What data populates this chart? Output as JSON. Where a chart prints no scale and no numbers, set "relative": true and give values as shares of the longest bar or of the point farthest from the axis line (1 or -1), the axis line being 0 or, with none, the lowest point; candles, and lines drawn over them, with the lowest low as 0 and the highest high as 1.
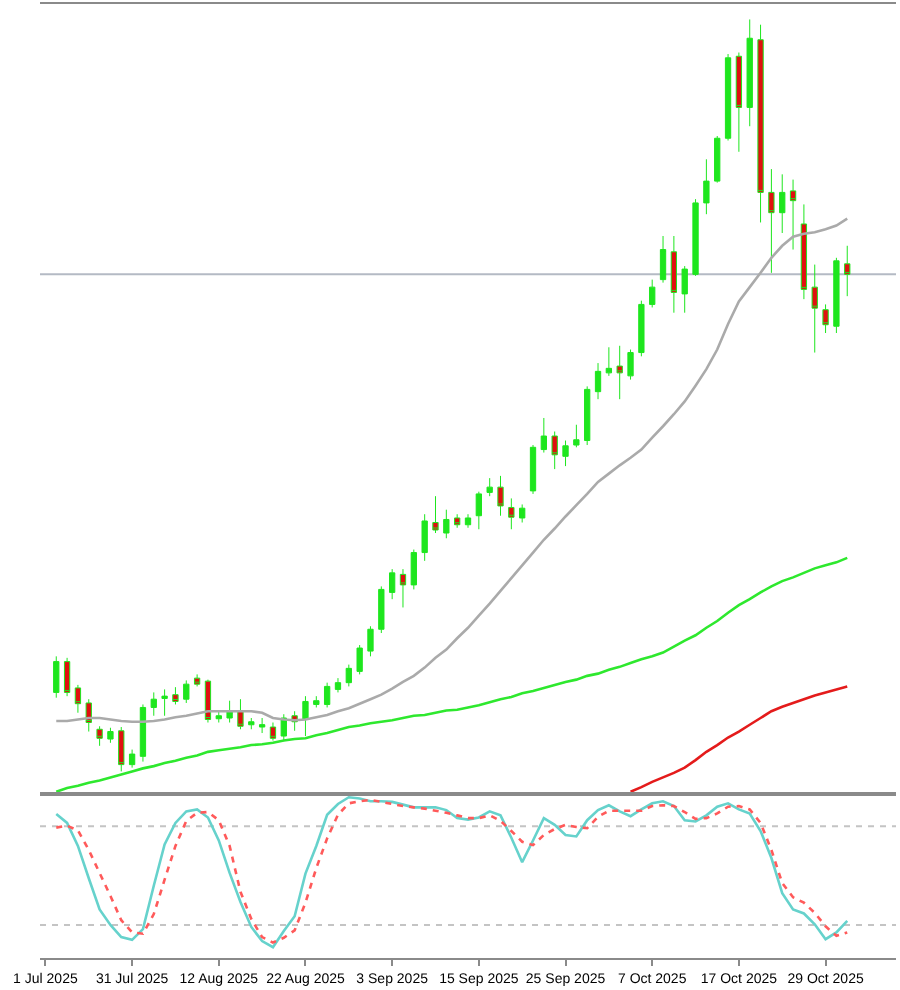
{
  "chart_data": [
    {
      "type": "candlestick",
      "relative": true,
      "categories": [
        null,
        null,
        null,
        null,
        null,
        null,
        null,
        null,
        null,
        null,
        null,
        null,
        null,
        null,
        null,
        null,
        null,
        null,
        null,
        null,
        null,
        null,
        null,
        null,
        null,
        null,
        null,
        null,
        null,
        null,
        null,
        null,
        null,
        null,
        null,
        null,
        null,
        null,
        null,
        null,
        null,
        null,
        null,
        null,
        null,
        null,
        null,
        null,
        null,
        null,
        null,
        null,
        null,
        null,
        null,
        null,
        null,
        null,
        null,
        null,
        null,
        null,
        null,
        null,
        null,
        null,
        null,
        null,
        null,
        null,
        null,
        null,
        null,
        null,
        null
      ],
      "color": "#1ee61e",
      "colors": [
        null,
        "#1ee61e",
        "#e01010",
        "#e01010",
        "#e01010",
        "#e01010",
        "#1ee61e",
        "#e01010",
        "#1ee61e",
        "#1ee61e",
        "#1ee61e",
        "#1ee61e",
        "#e01010",
        "#1ee61e",
        "#e01010",
        "#e01010",
        "#1ee61e",
        "#1ee61e",
        "#e01010",
        "#1ee61e",
        "#1ee61e",
        "#e01010",
        "#1ee61e",
        "#e01010",
        "#1ee61e",
        "#1ee61e",
        "#1ee61e",
        "#1ee61e",
        "#1ee61e",
        "#1ee61e",
        "#1ee61e",
        "#1ee61e",
        "#1ee61e",
        "#e01010",
        "#1ee61e",
        "#1ee61e",
        "#e01010",
        "#1ee61e",
        "#e01010",
        "#1ee61e",
        "#1ee61e",
        "#1ee61e",
        "#e01010",
        "#e01010",
        "#1ee61e",
        "#1ee61e",
        "#1ee61e",
        "#e01010",
        "#1ee61e",
        "#1ee61e",
        "#1ee61e",
        "#1ee61e",
        "#1ee61e",
        "#e01010",
        "#1ee61e",
        "#1ee61e",
        "#1ee61e",
        "#1ee61e",
        "#e01010",
        "#1ee61e",
        "#1ee61e",
        "#1ee61e",
        "#1ee61e",
        "#1ee61e",
        "#e01010",
        "#1ee61e",
        "#e01010",
        "#e01010",
        "#1ee61e",
        "#e01010",
        "#e01010",
        "#e01010",
        "#e01010",
        "#1ee61e",
        "#e01010"
      ],
      "ohlc": [
        null,
        [
          0.105,
          0.153,
          0.098,
          0.146
        ],
        [
          0.146,
          0.151,
          0.1,
          0.105
        ],
        [
          0.111,
          0.115,
          0.078,
          0.09
        ],
        [
          0.091,
          0.096,
          0.053,
          0.065
        ],
        [
          0.056,
          0.06,
          0.034,
          0.044
        ],
        [
          0.043,
          0.058,
          0.038,
          0.053
        ],
        [
          0.054,
          0.059,
          0.0,
          0.009
        ],
        [
          0.009,
          0.029,
          0.005,
          0.023
        ],
        [
          0.02,
          0.089,
          0.013,
          0.085
        ],
        [
          0.085,
          0.105,
          0.074,
          0.096
        ],
        [
          0.097,
          0.109,
          0.074,
          0.1
        ],
        [
          0.102,
          0.112,
          0.089,
          0.093
        ],
        [
          0.096,
          0.121,
          0.091,
          0.116
        ],
        [
          0.124,
          0.129,
          0.113,
          0.116
        ],
        [
          0.12,
          0.122,
          0.065,
          0.069
        ],
        [
          0.07,
          0.08,
          0.065,
          0.074
        ],
        [
          0.071,
          0.094,
          0.065,
          0.08
        ],
        [
          0.08,
          0.096,
          0.056,
          0.06
        ],
        [
          0.062,
          0.071,
          0.056,
          0.066
        ],
        [
          0.059,
          0.071,
          0.051,
          0.062
        ],
        [
          0.059,
          0.065,
          0.041,
          0.044
        ],
        [
          0.047,
          0.076,
          0.041,
          0.071
        ],
        [
          0.074,
          0.08,
          0.054,
          0.066
        ],
        [
          0.069,
          0.1,
          0.047,
          0.093
        ],
        [
          0.089,
          0.1,
          0.085,
          0.094
        ],
        [
          0.089,
          0.118,
          0.085,
          0.113
        ],
        [
          0.109,
          0.124,
          0.105,
          0.118
        ],
        [
          0.118,
          0.142,
          0.113,
          0.137
        ],
        [
          0.133,
          0.168,
          0.129,
          0.164
        ],
        [
          0.16,
          0.193,
          0.153,
          0.189
        ],
        [
          0.189,
          0.246,
          0.184,
          0.242
        ],
        [
          0.238,
          0.269,
          0.229,
          0.264
        ],
        [
          0.262,
          0.269,
          0.218,
          0.248
        ],
        [
          0.248,
          0.295,
          0.242,
          0.291
        ],
        [
          0.291,
          0.342,
          0.28,
          0.333
        ],
        [
          0.331,
          0.366,
          0.317,
          0.321
        ],
        [
          0.317,
          0.348,
          0.31,
          0.335
        ],
        [
          0.337,
          0.342,
          0.324,
          0.328
        ],
        [
          0.328,
          0.342,
          0.324,
          0.337
        ],
        [
          0.34,
          0.372,
          0.322,
          0.369
        ],
        [
          0.371,
          0.39,
          0.366,
          0.378
        ],
        [
          0.378,
          0.393,
          0.34,
          0.353
        ],
        [
          0.351,
          0.363,
          0.322,
          0.338
        ],
        [
          0.337,
          0.355,
          0.331,
          0.35
        ],
        [
          0.373,
          0.434,
          0.369,
          0.431
        ],
        [
          0.428,
          0.47,
          0.424,
          0.446
        ],
        [
          0.446,
          0.452,
          0.402,
          0.421
        ],
        [
          0.419,
          0.44,
          0.406,
          0.433
        ],
        [
          0.434,
          0.461,
          0.431,
          0.441
        ],
        [
          0.44,
          0.512,
          0.434,
          0.508
        ],
        [
          0.505,
          0.543,
          0.495,
          0.532
        ],
        [
          0.53,
          0.564,
          0.526,
          0.536
        ],
        [
          0.539,
          0.566,
          0.495,
          0.53
        ],
        [
          0.526,
          0.561,
          0.521,
          0.557
        ],
        [
          0.557,
          0.626,
          0.552,
          0.621
        ],
        [
          0.621,
          0.654,
          0.617,
          0.644
        ],
        [
          0.654,
          0.712,
          0.65,
          0.694
        ],
        [
          0.691,
          0.712,
          0.61,
          0.637
        ],
        [
          0.635,
          0.672,
          0.61,
          0.668
        ],
        [
          0.661,
          0.761,
          0.659,
          0.756
        ],
        [
          0.756,
          0.814,
          0.741,
          0.785
        ],
        [
          0.785,
          0.845,
          0.783,
          0.842
        ],
        [
          0.842,
          0.954,
          0.839,
          0.949
        ],
        [
          0.951,
          0.956,
          0.824,
          0.883
        ],
        [
          0.883,
          1.0,
          0.858,
          0.975
        ],
        [
          0.973,
          0.993,
          0.73,
          0.77
        ],
        [
          0.77,
          0.801,
          0.663,
          0.743
        ],
        [
          0.743,
          0.794,
          0.716,
          0.77
        ],
        [
          0.772,
          0.787,
          0.694,
          0.759
        ],
        [
          0.728,
          0.754,
          0.628,
          0.641
        ],
        [
          0.644,
          0.674,
          0.557,
          0.616
        ],
        [
          0.614,
          0.621,
          0.583,
          0.594
        ],
        [
          0.592,
          0.683,
          0.583,
          0.679
        ],
        [
          0.675,
          0.699,
          0.632,
          0.661
        ]
      ],
      "series": [
        {
          "type": "line",
          "color": "#aaaaaa",
          "values": [
            null,
            0.067,
            0.067,
            0.069,
            0.071,
            0.071,
            0.069,
            0.067,
            0.066,
            0.066,
            0.067,
            0.069,
            0.072,
            0.074,
            0.077,
            0.08,
            0.08,
            0.08,
            0.08,
            0.08,
            0.078,
            0.071,
            0.069,
            0.068,
            0.069,
            0.072,
            0.075,
            0.08,
            0.084,
            0.09,
            0.096,
            0.102,
            0.11,
            0.119,
            0.127,
            0.138,
            0.151,
            0.162,
            0.177,
            0.191,
            0.207,
            0.223,
            0.24,
            0.257,
            0.274,
            0.291,
            0.308,
            0.323,
            0.339,
            0.354,
            0.369,
            0.385,
            0.396,
            0.407,
            0.417,
            0.428,
            0.444,
            0.459,
            0.475,
            0.492,
            0.513,
            0.535,
            0.561,
            0.595,
            0.625,
            0.644,
            0.663,
            0.683,
            0.699,
            0.711,
            0.715,
            0.717,
            0.721,
            0.726,
            0.735
          ]
        },
        {
          "type": "line",
          "color": "#2ee82e",
          "values": [
            null,
            -0.027,
            -0.022,
            -0.019,
            -0.015,
            -0.012,
            -0.008,
            -0.004,
            0.0,
            0.004,
            0.007,
            0.011,
            0.014,
            0.018,
            0.021,
            0.026,
            0.028,
            0.03,
            0.032,
            0.035,
            0.036,
            0.038,
            0.041,
            0.043,
            0.044,
            0.048,
            0.051,
            0.055,
            0.059,
            0.061,
            0.064,
            0.066,
            0.068,
            0.071,
            0.074,
            0.075,
            0.078,
            0.081,
            0.082,
            0.085,
            0.088,
            0.092,
            0.096,
            0.099,
            0.104,
            0.107,
            0.111,
            0.115,
            0.119,
            0.122,
            0.127,
            0.13,
            0.135,
            0.139,
            0.144,
            0.149,
            0.153,
            0.158,
            0.166,
            0.174,
            0.181,
            0.191,
            0.2,
            0.211,
            0.221,
            0.229,
            0.238,
            0.246,
            0.253,
            0.258,
            0.264,
            0.27,
            0.274,
            0.278,
            0.284
          ]
        },
        {
          "type": "line",
          "color": "#e41b1b",
          "values": [
            null,
            null,
            null,
            null,
            null,
            null,
            null,
            null,
            null,
            null,
            null,
            null,
            null,
            null,
            null,
            null,
            null,
            null,
            null,
            null,
            null,
            null,
            null,
            null,
            null,
            null,
            null,
            null,
            null,
            null,
            null,
            null,
            null,
            null,
            null,
            null,
            null,
            null,
            null,
            null,
            null,
            null,
            null,
            null,
            null,
            null,
            null,
            null,
            null,
            null,
            null,
            null,
            null,
            null,
            -0.027,
            -0.021,
            -0.014,
            -0.008,
            -0.002,
            0.005,
            0.015,
            0.026,
            0.035,
            0.045,
            0.053,
            0.062,
            0.071,
            0.08,
            0.086,
            0.091,
            0.096,
            0.101,
            0.105,
            0.109,
            0.113
          ]
        }
      ],
      "ref_lines": [
        {
          "axis": "y",
          "value": 0.661,
          "color": "#b4bac4"
        }
      ]
    },
    {
      "type": "line",
      "relative": true,
      "tick_labels": "x",
      "categories": [
        "1 Jul 2025",
        null,
        null,
        null,
        null,
        null,
        null,
        null,
        "31 Jul 2025",
        null,
        null,
        null,
        null,
        null,
        null,
        null,
        "12 Aug 2025",
        null,
        null,
        null,
        null,
        null,
        null,
        null,
        "22 Aug 2025",
        null,
        null,
        null,
        null,
        null,
        null,
        null,
        "3 Sep 2025",
        null,
        null,
        null,
        null,
        null,
        null,
        null,
        "15 Sep 2025",
        null,
        null,
        null,
        null,
        null,
        null,
        null,
        "25 Sep 2025",
        null,
        null,
        null,
        null,
        null,
        null,
        null,
        "7 Oct 2025",
        null,
        null,
        null,
        null,
        null,
        null,
        null,
        "17 Oct 2025",
        null,
        null,
        null,
        null,
        null,
        null,
        null,
        "29 Oct 2025",
        null,
        null
      ],
      "series": [
        {
          "color": "#66d2cc",
          "line_style": "solid",
          "values": [
            null,
            0.895,
            0.84,
            0.697,
            0.496,
            0.302,
            0.206,
            0.13,
            0.113,
            0.18,
            0.449,
            0.706,
            0.84,
            0.912,
            0.924,
            0.874,
            0.731,
            0.529,
            0.348,
            0.193,
            0.105,
            0.067,
            0.168,
            0.26,
            0.525,
            0.697,
            0.891,
            0.958,
            1.0,
            0.992,
            0.975,
            0.975,
            0.971,
            0.954,
            0.937,
            0.937,
            0.937,
            0.92,
            0.87,
            0.861,
            0.874,
            0.912,
            0.887,
            0.748,
            0.596,
            0.731,
            0.87,
            0.828,
            0.765,
            0.756,
            0.857,
            0.92,
            0.95,
            0.912,
            0.882,
            0.924,
            0.962,
            0.975,
            0.945,
            0.857,
            0.849,
            0.887,
            0.941,
            0.962,
            0.924,
            0.899,
            0.79,
            0.622,
            0.403,
            0.302,
            0.277,
            0.21,
            0.117,
            0.159,
            0.231
          ]
        },
        {
          "color": "#ff5a5a",
          "line_style": "dotted",
          "values": [
            null,
            0.811,
            0.823,
            0.794,
            0.672,
            0.529,
            0.386,
            0.235,
            0.159,
            0.151,
            0.273,
            0.487,
            0.697,
            0.853,
            0.903,
            0.908,
            0.857,
            0.697,
            0.412,
            0.243,
            0.13,
            0.096,
            0.126,
            0.172,
            0.344,
            0.559,
            0.744,
            0.891,
            0.962,
            0.975,
            0.983,
            0.971,
            0.958,
            0.945,
            0.937,
            0.929,
            0.916,
            0.903,
            0.887,
            0.87,
            0.87,
            0.887,
            0.853,
            0.79,
            0.723,
            0.702,
            0.765,
            0.802,
            0.828,
            0.815,
            0.807,
            0.878,
            0.916,
            0.916,
            0.916,
            0.916,
            0.945,
            0.95,
            0.945,
            0.908,
            0.865,
            0.87,
            0.899,
            0.941,
            0.945,
            0.924,
            0.84,
            0.672,
            0.466,
            0.378,
            0.344,
            0.281,
            0.197,
            0.138,
            0.159
          ]
        }
      ],
      "ref_lines": [
        {
          "axis": "y",
          "value": 0.819,
          "color": "#c4c4c4",
          "line_style": "dotted"
        },
        {
          "axis": "y",
          "value": 0.206,
          "color": "#c4c4c4",
          "line_style": "dotted"
        }
      ]
    }
  ]
}
